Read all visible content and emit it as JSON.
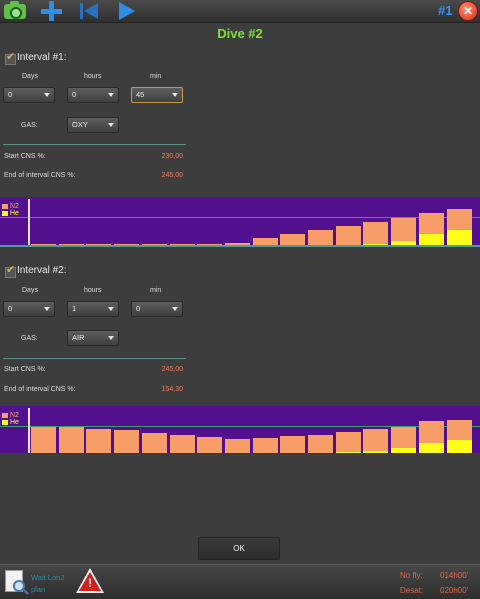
{
  "toolbar": {
    "camera_icon": "camera-icon",
    "add_icon": "plus-icon",
    "rewind_icon": "skip-back-icon",
    "play_icon": "play-icon",
    "dive_number": "#1",
    "close_symbol": "✕"
  },
  "title": "Dive #2",
  "intervals": [
    {
      "label": "Interval #1:",
      "checked": true,
      "days_label": "Days",
      "hours_label": "hours",
      "min_label": "min",
      "days_value": "0",
      "hours_value": "0",
      "min_value": "45",
      "gas_label": "GAS:",
      "gas_value": "OXY",
      "start_cns_label": "Start CNS %:",
      "start_cns_value": "230,00",
      "end_cns_label": "End of interval CNS %:",
      "end_cns_value": "245,00",
      "legend": [
        "N2",
        "He"
      ],
      "chart_levels": {
        "n2": [
          1,
          1,
          1,
          2,
          2,
          2,
          2,
          4,
          14,
          22,
          31,
          40,
          47,
          57,
          67,
          76
        ],
        "he": [
          0,
          0,
          0,
          0,
          0,
          0,
          0,
          0,
          0,
          0,
          0,
          0,
          2,
          8,
          23,
          31
        ]
      }
    },
    {
      "label": "Interval #2:",
      "checked": true,
      "days_label": "Days",
      "hours_label": "hours",
      "min_label": "min",
      "days_value": "0",
      "hours_value": "1",
      "min_value": "0",
      "gas_label": "GAS:",
      "gas_value": "AIR",
      "start_cns_label": "Start CNS %:",
      "start_cns_value": "245,00",
      "end_cns_label": "End of interval CNS %:",
      "end_cns_value": "154,30",
      "legend": [
        "N2",
        "He"
      ],
      "chart_levels": {
        "n2": [
          55,
          55,
          52,
          48,
          43,
          38,
          34,
          30,
          32,
          36,
          39,
          44,
          50,
          55,
          68,
          70
        ],
        "he": [
          0,
          0,
          0,
          0,
          0,
          0,
          0,
          0,
          0,
          0,
          0,
          3,
          4,
          11,
          22,
          28
        ]
      }
    }
  ],
  "colors": {
    "n2": "#f79e68",
    "he": "#fdff1a",
    "chart_background": "#52108e",
    "ceiling_line": "#37a06a",
    "title": "#7fe032",
    "cns_value": "#f07f5b",
    "no_fly": "#e0674b"
  },
  "ok_label": "OK",
  "bottom": {
    "doc_icon": "document-search-icon",
    "line1": "Wait Lon2",
    "line2": "plan",
    "warning_icon": "warning-triangle-icon",
    "no_fly_label": "No fly:",
    "no_fly_value": "014h00'",
    "desat_label": "Desat:",
    "desat_value": "020h00'"
  }
}
